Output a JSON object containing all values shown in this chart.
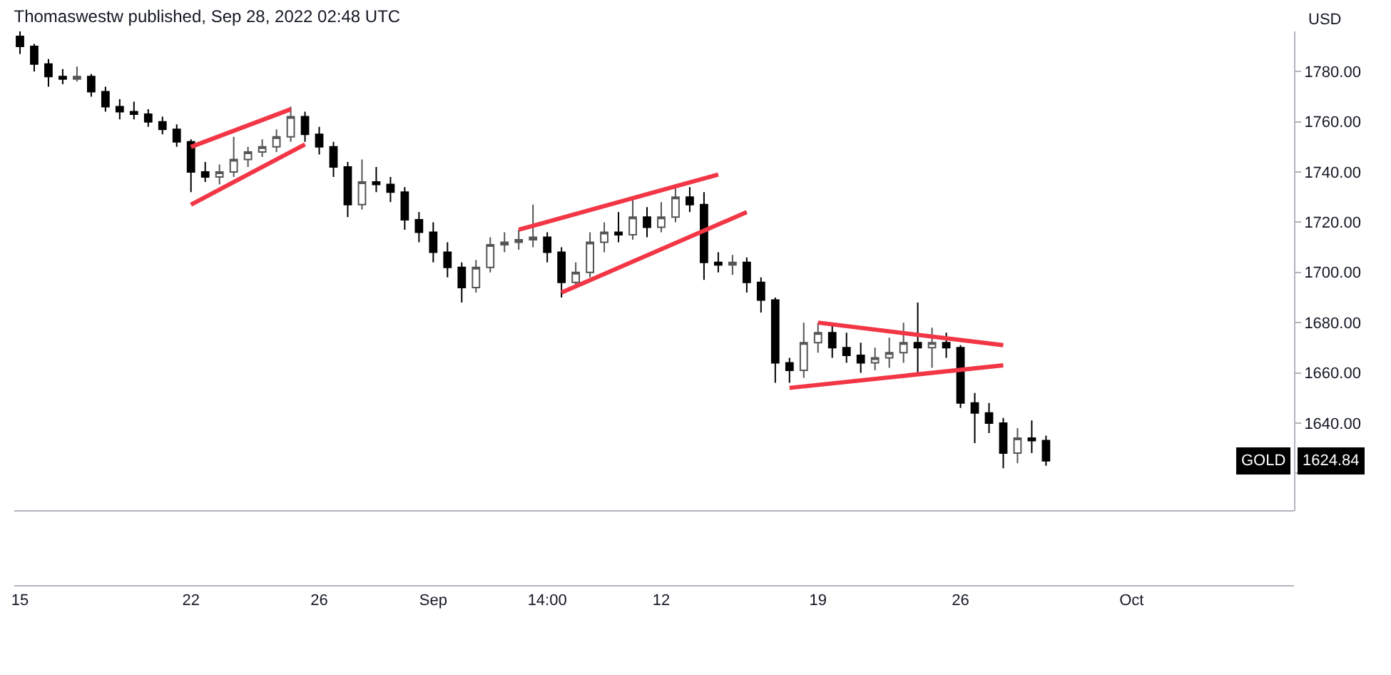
{
  "chart_data": {
    "type": "candlestick",
    "title": "Thomaswestw published, Sep 28, 2022 02:48 UTC",
    "ylabel": "USD",
    "categories": [
      "15",
      null,
      null,
      null,
      null,
      null,
      null,
      null,
      null,
      null,
      null,
      null,
      "22",
      null,
      null,
      null,
      null,
      null,
      null,
      null,
      null,
      "26",
      null,
      null,
      null,
      null,
      null,
      null,
      null,
      "Sep",
      null,
      null,
      null,
      null,
      null,
      null,
      null,
      "14:00",
      null,
      null,
      null,
      null,
      null,
      null,
      null,
      "12",
      null,
      null,
      null,
      null,
      null,
      null,
      null,
      null,
      null,
      null,
      "19",
      null,
      null,
      null,
      null,
      null,
      null,
      null,
      null,
      null,
      "26",
      null,
      null,
      null,
      null,
      null,
      null,
      null,
      null,
      null,
      null,
      null,
      "Oct",
      null,
      null,
      null,
      null,
      null,
      null,
      null,
      null,
      null,
      null,
      null
    ],
    "ohlc": [
      [
        1794,
        1796,
        1787,
        1790
      ],
      [
        1790,
        1791,
        1780,
        1783
      ],
      [
        1783,
        1785,
        1774,
        1778
      ],
      [
        1778,
        1781,
        1775,
        1777
      ],
      [
        1777,
        1782,
        1776,
        1778
      ],
      [
        1778,
        1779,
        1770,
        1772
      ],
      [
        1772,
        1774,
        1764,
        1766
      ],
      [
        1766,
        1769,
        1761,
        1764
      ],
      [
        1764,
        1768,
        1761,
        1763
      ],
      [
        1763,
        1765,
        1758,
        1760
      ],
      [
        1760,
        1762,
        1755,
        1757
      ],
      [
        1757,
        1759,
        1750,
        1752
      ],
      [
        1752,
        1753,
        1732,
        1740
      ],
      [
        1740,
        1744,
        1736,
        1738
      ],
      [
        1738,
        1743,
        1735,
        1740
      ],
      [
        1740,
        1754,
        1738,
        1745
      ],
      [
        1745,
        1750,
        1742,
        1748
      ],
      [
        1748,
        1753,
        1746,
        1750
      ],
      [
        1750,
        1757,
        1748,
        1754
      ],
      [
        1754,
        1766,
        1752,
        1762
      ],
      [
        1762,
        1764,
        1752,
        1755
      ],
      [
        1755,
        1758,
        1747,
        1750
      ],
      [
        1750,
        1752,
        1738,
        1742
      ],
      [
        1742,
        1744,
        1722,
        1727
      ],
      [
        1727,
        1745,
        1725,
        1736
      ],
      [
        1736,
        1742,
        1732,
        1735
      ],
      [
        1735,
        1738,
        1728,
        1732
      ],
      [
        1732,
        1734,
        1717,
        1721
      ],
      [
        1721,
        1724,
        1712,
        1716
      ],
      [
        1716,
        1720,
        1704,
        1708
      ],
      [
        1708,
        1712,
        1698,
        1702
      ],
      [
        1702,
        1704,
        1688,
        1694
      ],
      [
        1694,
        1705,
        1692,
        1702
      ],
      [
        1702,
        1714,
        1700,
        1711
      ],
      [
        1711,
        1716,
        1708,
        1712
      ],
      [
        1712,
        1717,
        1709,
        1713
      ],
      [
        1713,
        1727,
        1710,
        1714
      ],
      [
        1714,
        1716,
        1704,
        1708
      ],
      [
        1708,
        1710,
        1690,
        1696
      ],
      [
        1696,
        1704,
        1694,
        1700
      ],
      [
        1700,
        1716,
        1698,
        1712
      ],
      [
        1712,
        1720,
        1708,
        1716
      ],
      [
        1716,
        1724,
        1712,
        1715
      ],
      [
        1715,
        1730,
        1713,
        1722
      ],
      [
        1722,
        1726,
        1714,
        1718
      ],
      [
        1718,
        1728,
        1716,
        1722
      ],
      [
        1722,
        1735,
        1720,
        1730
      ],
      [
        1730,
        1734,
        1724,
        1727
      ],
      [
        1727,
        1732,
        1697,
        1704
      ],
      [
        1704,
        1708,
        1700,
        1703
      ],
      [
        1703,
        1707,
        1699,
        1704
      ],
      [
        1704,
        1706,
        1692,
        1696
      ],
      [
        1696,
        1698,
        1684,
        1689
      ],
      [
        1689,
        1690,
        1656,
        1664
      ],
      [
        1664,
        1666,
        1656,
        1661
      ],
      [
        1661,
        1680,
        1658,
        1672
      ],
      [
        1672,
        1680,
        1668,
        1676
      ],
      [
        1676,
        1679,
        1666,
        1670
      ],
      [
        1670,
        1676,
        1664,
        1667
      ],
      [
        1667,
        1672,
        1660,
        1664
      ],
      [
        1664,
        1670,
        1661,
        1666
      ],
      [
        1666,
        1674,
        1662,
        1668
      ],
      [
        1668,
        1680,
        1664,
        1672
      ],
      [
        1672,
        1688,
        1660,
        1670
      ],
      [
        1670,
        1678,
        1662,
        1672
      ],
      [
        1672,
        1676,
        1666,
        1670
      ],
      [
        1670,
        1671,
        1646,
        1648
      ],
      [
        1648,
        1652,
        1632,
        1644
      ],
      [
        1644,
        1648,
        1636,
        1640
      ],
      [
        1640,
        1642,
        1622,
        1628
      ],
      [
        1628,
        1638,
        1624,
        1634
      ],
      [
        1634,
        1641,
        1628,
        1633
      ],
      [
        1633,
        1635,
        1623,
        1625
      ],
      null,
      null,
      null,
      null,
      null,
      null,
      null,
      null,
      null,
      null,
      null,
      null,
      null,
      null,
      null,
      null,
      null
    ],
    "series": [
      {
        "type": "line",
        "color": "#f23645",
        "values": [
          null,
          null,
          null,
          null,
          null,
          null,
          null,
          null,
          null,
          null,
          null,
          null,
          1750,
          null,
          null,
          null,
          null,
          null,
          null,
          1765,
          null,
          null,
          null,
          null,
          null,
          null,
          null,
          null,
          null,
          null,
          null,
          null,
          null,
          null,
          null,
          null,
          null,
          null,
          null,
          null,
          null,
          null,
          null,
          null,
          null,
          null,
          null,
          null,
          null,
          null,
          null,
          null,
          null,
          null,
          null,
          null,
          null,
          null,
          null,
          null,
          null,
          null,
          null,
          null,
          null,
          null,
          null,
          null,
          null,
          null,
          null,
          null,
          null,
          null,
          null,
          null,
          null,
          null,
          null,
          null,
          null,
          null,
          null,
          null,
          null,
          null,
          null,
          null,
          null,
          null
        ]
      },
      {
        "type": "line",
        "color": "#f23645",
        "values": [
          null,
          null,
          null,
          null,
          null,
          null,
          null,
          null,
          null,
          null,
          null,
          null,
          1727,
          null,
          null,
          null,
          null,
          null,
          null,
          null,
          1751,
          null,
          null,
          null,
          null,
          null,
          null,
          null,
          null,
          null,
          null,
          null,
          null,
          null,
          null,
          null,
          null,
          null,
          null,
          null,
          null,
          null,
          null,
          null,
          null,
          null,
          null,
          null,
          null,
          null,
          null,
          null,
          null,
          null,
          null,
          null,
          null,
          null,
          null,
          null,
          null,
          null,
          null,
          null,
          null,
          null,
          null,
          null,
          null,
          null,
          null,
          null,
          null,
          null,
          null,
          null,
          null,
          null,
          null,
          null,
          null,
          null,
          null,
          null,
          null,
          null,
          null,
          null,
          null,
          null
        ]
      },
      {
        "type": "line",
        "color": "#f23645",
        "values": [
          null,
          null,
          null,
          null,
          null,
          null,
          null,
          null,
          null,
          null,
          null,
          null,
          null,
          null,
          null,
          null,
          null,
          null,
          null,
          null,
          null,
          null,
          null,
          null,
          null,
          null,
          null,
          null,
          null,
          null,
          null,
          null,
          null,
          null,
          null,
          1717,
          null,
          null,
          null,
          null,
          null,
          null,
          null,
          null,
          null,
          null,
          null,
          null,
          null,
          1739,
          null,
          null,
          null,
          null,
          null,
          null,
          null,
          null,
          null,
          null,
          null,
          null,
          null,
          null,
          null,
          null,
          null,
          null,
          null,
          null,
          null,
          null,
          null,
          null,
          null,
          null,
          null,
          null,
          null,
          null,
          null,
          null,
          null,
          null,
          null,
          null,
          null,
          null,
          null,
          null
        ]
      },
      {
        "type": "line",
        "color": "#f23645",
        "values": [
          null,
          null,
          null,
          null,
          null,
          null,
          null,
          null,
          null,
          null,
          null,
          null,
          null,
          null,
          null,
          null,
          null,
          null,
          null,
          null,
          null,
          null,
          null,
          null,
          null,
          null,
          null,
          null,
          null,
          null,
          null,
          null,
          null,
          null,
          null,
          null,
          null,
          null,
          1692,
          null,
          null,
          null,
          null,
          null,
          null,
          null,
          null,
          null,
          null,
          null,
          null,
          1724,
          null,
          null,
          null,
          null,
          null,
          null,
          null,
          null,
          null,
          null,
          null,
          null,
          null,
          null,
          null,
          null,
          null,
          null,
          null,
          null,
          null,
          null,
          null,
          null,
          null,
          null,
          null,
          null,
          null,
          null,
          null,
          null,
          null,
          null,
          null,
          null,
          null,
          null
        ]
      },
      {
        "type": "line",
        "color": "#f23645",
        "values": [
          null,
          null,
          null,
          null,
          null,
          null,
          null,
          null,
          null,
          null,
          null,
          null,
          null,
          null,
          null,
          null,
          null,
          null,
          null,
          null,
          null,
          null,
          null,
          null,
          null,
          null,
          null,
          null,
          null,
          null,
          null,
          null,
          null,
          null,
          null,
          null,
          null,
          null,
          null,
          null,
          null,
          null,
          null,
          null,
          null,
          null,
          null,
          null,
          null,
          null,
          null,
          null,
          null,
          null,
          null,
          null,
          1680,
          null,
          null,
          null,
          null,
          null,
          null,
          null,
          null,
          null,
          null,
          null,
          null,
          1671,
          null,
          null,
          null,
          null,
          null,
          null,
          null,
          null,
          null,
          null,
          null,
          null,
          null,
          null,
          null,
          null,
          null,
          null,
          null,
          null
        ]
      },
      {
        "type": "line",
        "color": "#f23645",
        "values": [
          null,
          null,
          null,
          null,
          null,
          null,
          null,
          null,
          null,
          null,
          null,
          null,
          null,
          null,
          null,
          null,
          null,
          null,
          null,
          null,
          null,
          null,
          null,
          null,
          null,
          null,
          null,
          null,
          null,
          null,
          null,
          null,
          null,
          null,
          null,
          null,
          null,
          null,
          null,
          null,
          null,
          null,
          null,
          null,
          null,
          null,
          null,
          null,
          null,
          null,
          null,
          null,
          null,
          null,
          1654,
          null,
          null,
          null,
          null,
          null,
          null,
          null,
          null,
          null,
          null,
          null,
          null,
          null,
          null,
          1663,
          null,
          null,
          null,
          null,
          null,
          null,
          null,
          null,
          null,
          null,
          null,
          null,
          null,
          null,
          null,
          null,
          null,
          null,
          null,
          null
        ]
      }
    ],
    "ylim": [
      1605,
      1796
    ],
    "yticks": [
      {
        "value": 1620,
        "label": null
      },
      {
        "value": 1640,
        "label": "1640.00"
      },
      {
        "value": 1660,
        "label": "1660.00"
      },
      {
        "value": 1680,
        "label": "1680.00"
      },
      {
        "value": 1700,
        "label": "1700.00"
      },
      {
        "value": 1720,
        "label": "1720.00"
      },
      {
        "value": 1740,
        "label": "1740.00"
      },
      {
        "value": 1760,
        "label": "1760.00"
      },
      {
        "value": 1780,
        "label": "1780.00"
      }
    ],
    "annotations": [
      "GOLD",
      "1624.84"
    ]
  }
}
